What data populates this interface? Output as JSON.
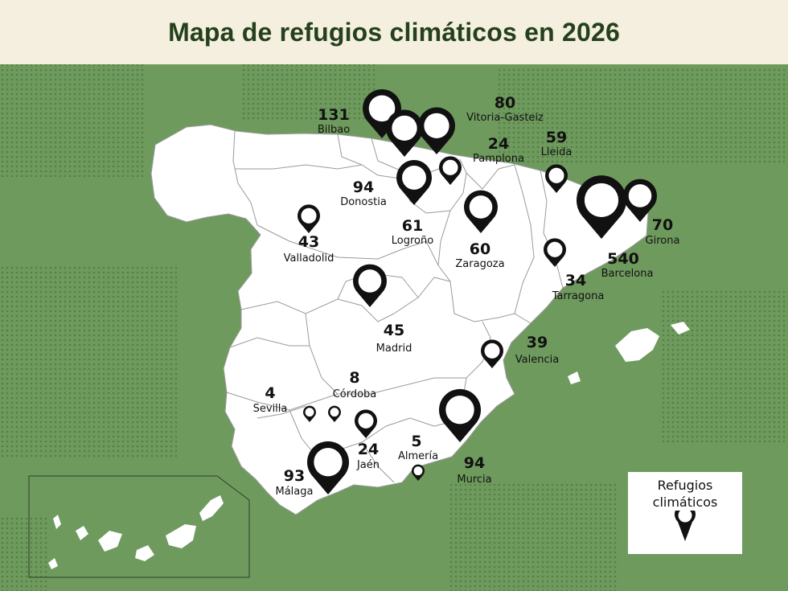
{
  "title": "Mapa de refugios climáticos en 2026",
  "colors": {
    "background": "#6f9a5e",
    "land": "#ffffff",
    "header": "#f4efdf",
    "title": "#24401c",
    "pin": "#111111"
  },
  "legend": {
    "label": "Refugios climáticos",
    "icon": "map-pin-icon"
  },
  "cities": [
    {
      "key": "bilbao",
      "count": "131",
      "name": "Bilbao"
    },
    {
      "key": "vitoria",
      "count": "80",
      "name": "Vitoria-Gasteiz"
    },
    {
      "key": "pamplona",
      "count": "24",
      "name": "Pamplona"
    },
    {
      "key": "lleida",
      "count": "59",
      "name": "Lleida"
    },
    {
      "key": "donostia",
      "count": "94",
      "name": "Donostia"
    },
    {
      "key": "logrono",
      "count": "61",
      "name": "Logroño"
    },
    {
      "key": "valladolid",
      "count": "43",
      "name": "Valladolid"
    },
    {
      "key": "zaragoza",
      "count": "60",
      "name": "Zaragoza"
    },
    {
      "key": "girona",
      "count": "70",
      "name": "Girona"
    },
    {
      "key": "barcelona",
      "count": "540",
      "name": "Barcelona"
    },
    {
      "key": "tarragona",
      "count": "34",
      "name": "Tarragona"
    },
    {
      "key": "madrid",
      "count": "45",
      "name": "Madrid"
    },
    {
      "key": "valencia",
      "count": "39",
      "name": "Valencia"
    },
    {
      "key": "sevilla",
      "count": "4",
      "name": "Sevilla"
    },
    {
      "key": "cordoba",
      "count": "8",
      "name": "Córdoba"
    },
    {
      "key": "jaen",
      "count": "24",
      "name": "Jaén"
    },
    {
      "key": "almeria",
      "count": "5",
      "name": "Almería"
    },
    {
      "key": "malaga",
      "count": "93",
      "name": "Málaga"
    },
    {
      "key": "murcia",
      "count": "94",
      "name": "Murcia"
    }
  ]
}
